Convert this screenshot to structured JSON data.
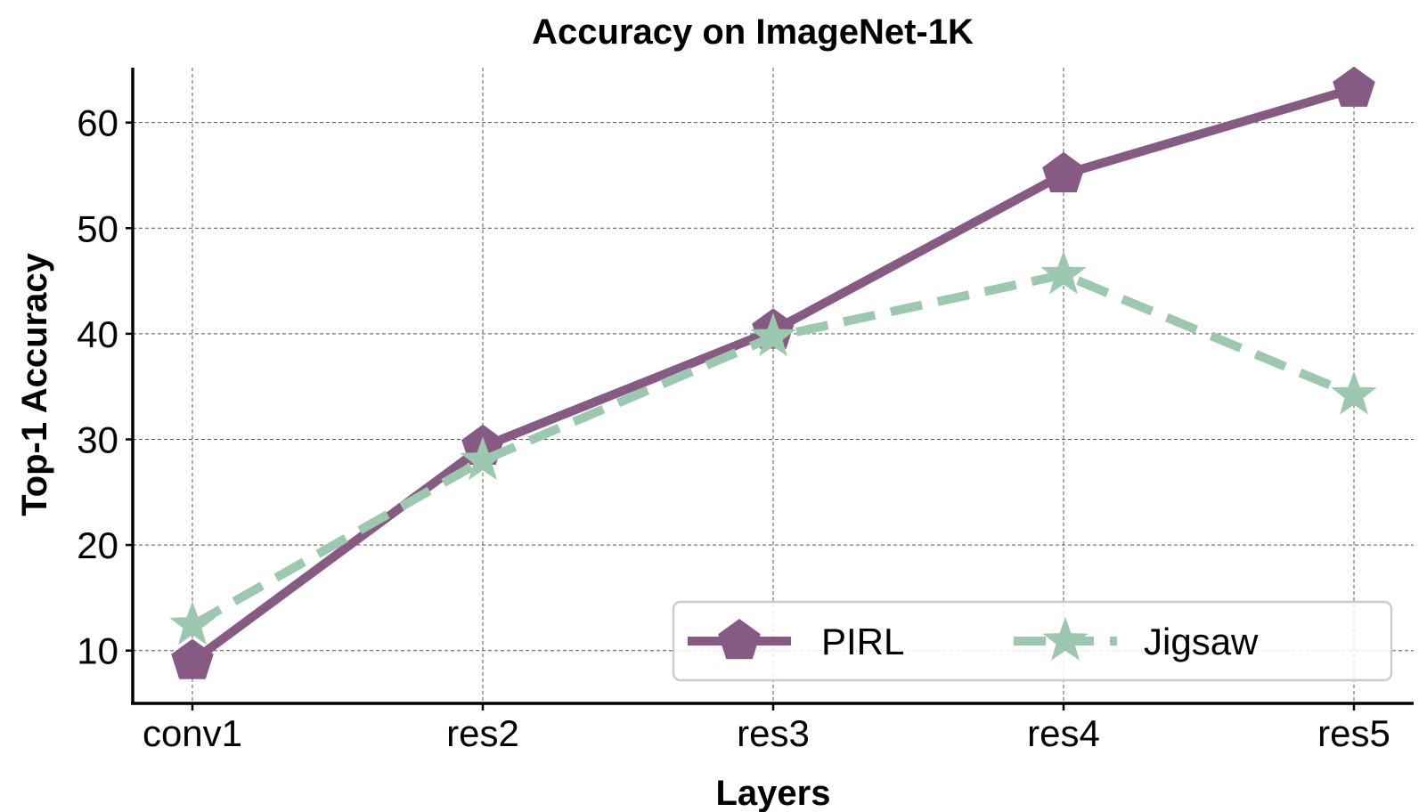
{
  "chart_data": {
    "type": "line",
    "title": "Accuracy on ImageNet-1K",
    "xlabel": "Layers",
    "ylabel": "Top-1 Accuracy",
    "categories": [
      "conv1",
      "res2",
      "res3",
      "res4",
      "res5"
    ],
    "yticks": [
      10,
      20,
      30,
      40,
      50,
      60
    ],
    "ylim": [
      5,
      65.2
    ],
    "grid": true,
    "legend": "lower-right",
    "series": [
      {
        "name": "PIRL",
        "values": [
          9.0,
          29.3,
          40.3,
          55.1,
          63.2
        ],
        "color": "#875a84",
        "marker": "pentagon",
        "linestyle": "solid"
      },
      {
        "name": "Jigsaw",
        "values": [
          12.4,
          28.0,
          39.7,
          45.6,
          34.2
        ],
        "color": "#9bc8ae",
        "marker": "star",
        "linestyle": "dashed"
      }
    ]
  }
}
